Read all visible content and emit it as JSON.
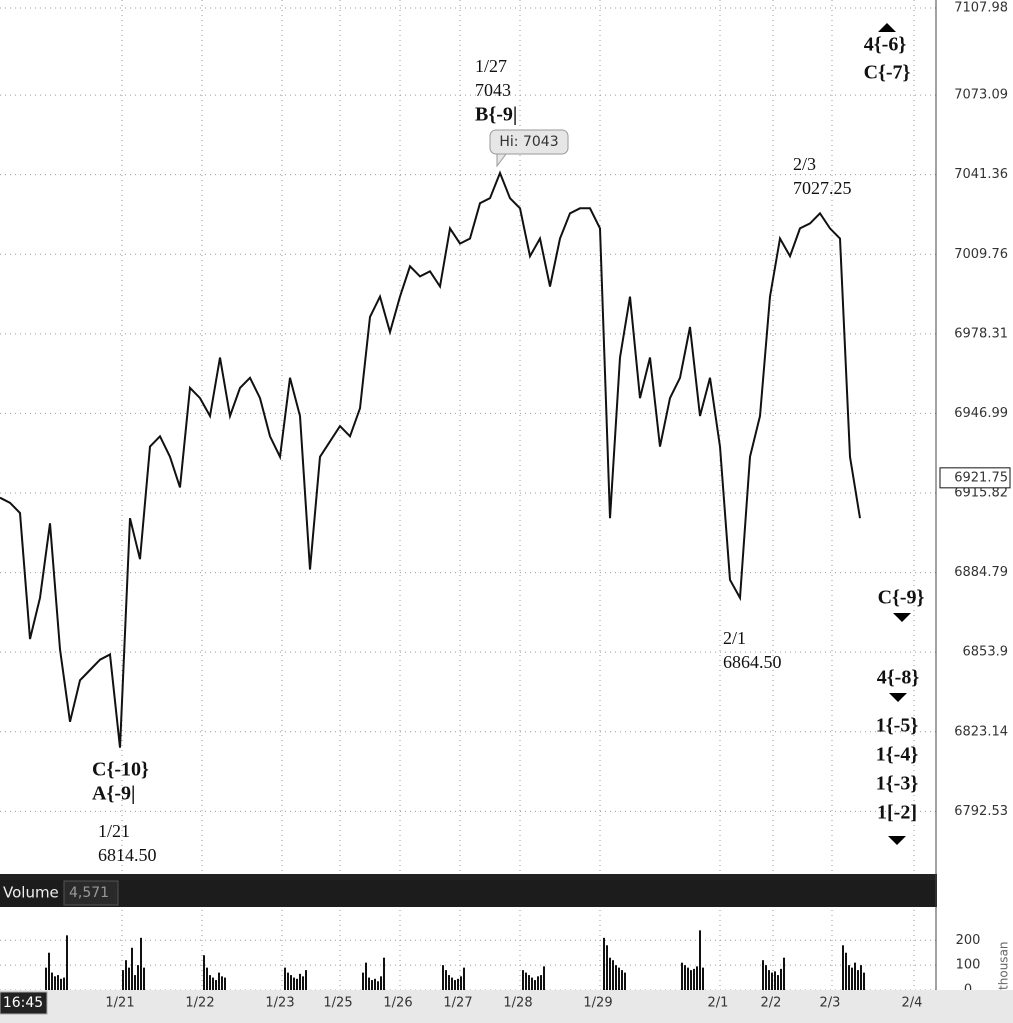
{
  "chart_data": {
    "type": "line",
    "log_scale": true,
    "grid": true,
    "ylim": [
      6768.9,
      7111.2
    ],
    "yticks": [
      7107.98,
      7073.09,
      7041.36,
      7009.76,
      6978.31,
      6946.99,
      6915.82,
      6884.79,
      6853.9,
      6823.14,
      6792.53
    ],
    "xlabels": [
      "1/21",
      "1/22",
      "1/23",
      "1/25",
      "1/26",
      "1/27",
      "1/28",
      "1/29",
      "2/1",
      "2/2",
      "2/3",
      "2/4"
    ],
    "series": [
      {
        "color": "#111111",
        "values": [
          6914,
          6912,
          6908,
          6859,
          6875,
          6904,
          6855,
          6827,
          6843,
          6847,
          6851,
          6853,
          6817,
          6906,
          6890,
          6934,
          6938,
          6930,
          6918,
          6957,
          6953,
          6946,
          6969,
          6946,
          6957,
          6961,
          6953,
          6938,
          6930,
          6961,
          6946,
          6886,
          6930,
          6936,
          6942,
          6938,
          6949,
          6985,
          6993,
          6979,
          6993,
          7005,
          7001,
          7003,
          6997,
          7020,
          7014,
          7016,
          7030,
          7032,
          7042,
          7032,
          7028,
          7009,
          7016,
          6997,
          7016,
          7026,
          7028,
          7028,
          7020,
          6906,
          6969,
          6993,
          6953,
          6969,
          6934,
          6953,
          6961,
          6981,
          6946,
          6961,
          6934,
          6882,
          6875,
          6930,
          6946,
          6993,
          7016,
          7009,
          7020,
          7022,
          7026,
          7020,
          7016,
          6930,
          6906
        ]
      }
    ],
    "last_price": 6921.75,
    "hi_label": "Hi: 7043",
    "annotations": [
      [
        "1/27",
        "7043",
        "B{-9|"
      ],
      [
        "2/3",
        "7027.25"
      ],
      [
        "2/1",
        "6864.50"
      ],
      [
        "C{-10}",
        "A{-9|"
      ],
      [
        "1/21",
        "6814.50"
      ]
    ],
    "wave_labels": [
      "4{-6}",
      "C{-7}",
      "C{-9}",
      "4{-8}",
      "1{-5}",
      "1{-4}",
      "1{-3}",
      "1[-2]"
    ],
    "time_label": "16:45",
    "volume": {
      "title": "Volume",
      "last": {
        "value": 4571,
        "label": "4,571"
      },
      "ylim": [
        0,
        330
      ],
      "yticks": [
        0,
        100,
        200
      ],
      "unit_label": "<thousan",
      "color": "#111111",
      "sessions": [
        [
          90,
          150,
          70,
          55,
          60,
          45,
          50,
          220
        ],
        [
          80,
          120,
          90,
          170,
          60,
          100,
          210,
          90
        ],
        [
          140,
          90,
          60,
          50,
          40,
          70,
          55,
          50
        ],
        [
          90,
          70,
          60,
          50,
          45,
          65,
          55,
          80
        ],
        [
          70,
          110,
          50,
          40,
          45,
          35,
          55,
          130
        ],
        [
          100,
          80,
          60,
          50,
          40,
          45,
          55,
          90
        ],
        [
          80,
          70,
          60,
          50,
          40,
          55,
          60,
          95
        ],
        [
          210,
          180,
          130,
          120,
          100,
          90,
          80,
          70
        ],
        [
          110,
          100,
          90,
          80,
          85,
          95,
          240,
          90
        ],
        [
          120,
          100,
          80,
          70,
          75,
          60,
          85,
          130
        ],
        [
          180,
          150,
          100,
          90,
          110,
          80,
          100,
          70
        ]
      ]
    }
  }
}
